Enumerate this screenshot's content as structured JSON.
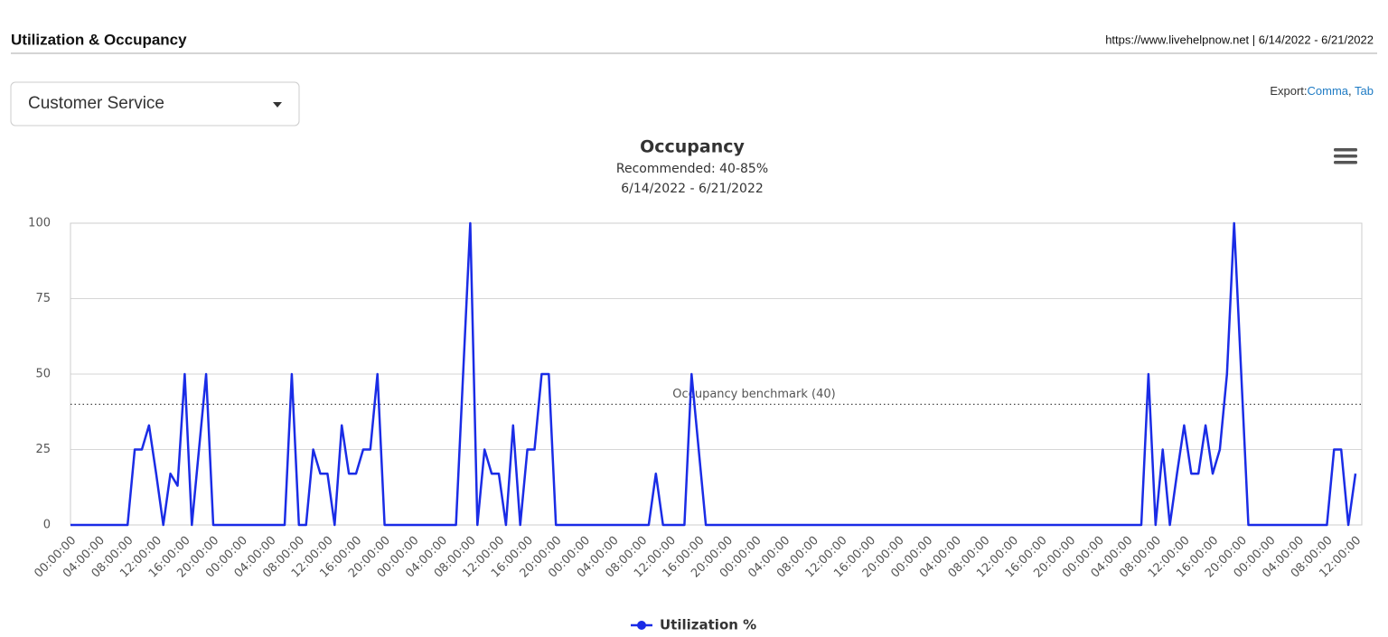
{
  "header": {
    "title": "Utilization & Occupancy",
    "info": "https://www.livehelpnow.net | 6/14/2022 - 6/21/2022"
  },
  "dropdown": {
    "selected": "Customer Service"
  },
  "export": {
    "label": "Export:",
    "links": [
      "Comma",
      "Tab"
    ],
    "separator": ", "
  },
  "chart_data": {
    "type": "line",
    "title": "Occupancy",
    "subtitle": "Recommended: 40-85%",
    "date_range": "6/14/2022 - 6/21/2022",
    "categories": [
      "00:00:00",
      null,
      null,
      null,
      "04:00:00",
      null,
      null,
      null,
      "08:00:00",
      null,
      null,
      null,
      "12:00:00",
      null,
      null,
      null,
      "16:00:00",
      null,
      null,
      null,
      "20:00:00",
      null,
      null,
      null,
      "00:00:00",
      null,
      null,
      null,
      "04:00:00",
      null,
      null,
      null,
      "08:00:00",
      null,
      null,
      null,
      "12:00:00",
      null,
      null,
      null,
      "16:00:00",
      null,
      null,
      null,
      "20:00:00",
      null,
      null,
      null,
      "00:00:00",
      null,
      null,
      null,
      "04:00:00",
      null,
      null,
      null,
      "08:00:00",
      null,
      null,
      null,
      "12:00:00",
      null,
      null,
      null,
      "16:00:00",
      null,
      null,
      null,
      "20:00:00",
      null,
      null,
      null,
      "00:00:00",
      null,
      null,
      null,
      "04:00:00",
      null,
      null,
      null,
      "08:00:00",
      null,
      null,
      null,
      "12:00:00",
      null,
      null,
      null,
      "16:00:00",
      null,
      null,
      null,
      "20:00:00",
      null,
      null,
      null,
      "00:00:00",
      null,
      null,
      null,
      "04:00:00",
      null,
      null,
      null,
      "08:00:00",
      null,
      null,
      null,
      "12:00:00",
      null,
      null,
      null,
      "16:00:00",
      null,
      null,
      null,
      "20:00:00",
      null,
      null,
      null,
      "00:00:00",
      null,
      null,
      null,
      "04:00:00",
      null,
      null,
      null,
      "08:00:00",
      null,
      null,
      null,
      "12:00:00",
      null,
      null,
      null,
      "16:00:00",
      null,
      null,
      null,
      "20:00:00",
      null,
      null,
      null,
      "00:00:00",
      null,
      null,
      null,
      "04:00:00",
      null,
      null,
      null,
      "08:00:00",
      null,
      null,
      null,
      "12:00:00",
      null,
      null,
      null,
      "16:00:00",
      null,
      null,
      null,
      "20:00:00",
      null,
      null,
      null,
      "00:00:00",
      null,
      null,
      null,
      "04:00:00",
      null,
      null,
      null,
      "08:00:00",
      null,
      null,
      null,
      "12:00:00"
    ],
    "series": [
      {
        "name": "Utilization %",
        "color": "#1a2ce6",
        "values": [
          0,
          0,
          0,
          0,
          0,
          0,
          0,
          0,
          0,
          25,
          25,
          33,
          17,
          0,
          17,
          13,
          50,
          0,
          25,
          50,
          0,
          0,
          0,
          0,
          0,
          0,
          0,
          0,
          0,
          0,
          0,
          50,
          0,
          0,
          25,
          17,
          17,
          0,
          33,
          17,
          17,
          25,
          25,
          50,
          0,
          0,
          0,
          0,
          0,
          0,
          0,
          0,
          0,
          0,
          0,
          50,
          100,
          0,
          25,
          17,
          17,
          0,
          33,
          0,
          25,
          25,
          50,
          50,
          0,
          0,
          0,
          0,
          0,
          0,
          0,
          0,
          0,
          0,
          0,
          0,
          0,
          0,
          17,
          0,
          0,
          0,
          0,
          50,
          25,
          0,
          0,
          0,
          0,
          0,
          0,
          0,
          0,
          0,
          0,
          0,
          0,
          0,
          0,
          0,
          0,
          0,
          0,
          0,
          0,
          0,
          0,
          0,
          0,
          0,
          0,
          0,
          0,
          0,
          0,
          0,
          0,
          0,
          0,
          0,
          0,
          0,
          0,
          0,
          0,
          0,
          0,
          0,
          0,
          0,
          0,
          0,
          0,
          0,
          0,
          0,
          0,
          0,
          0,
          0,
          0,
          0,
          0,
          0,
          0,
          0,
          0,
          50,
          0,
          25,
          0,
          17,
          33,
          17,
          17,
          33,
          17,
          25,
          50,
          100,
          50,
          0,
          0,
          0,
          0,
          0,
          0,
          0,
          0,
          0,
          0,
          0,
          0,
          25,
          25,
          0,
          17
        ]
      }
    ],
    "ylim": [
      0,
      100
    ],
    "yticks": [
      0,
      25,
      50,
      75,
      100
    ],
    "grid": true,
    "plot_lines": [
      {
        "value": 40,
        "label": "Occupancy benchmark (40)"
      }
    ]
  }
}
